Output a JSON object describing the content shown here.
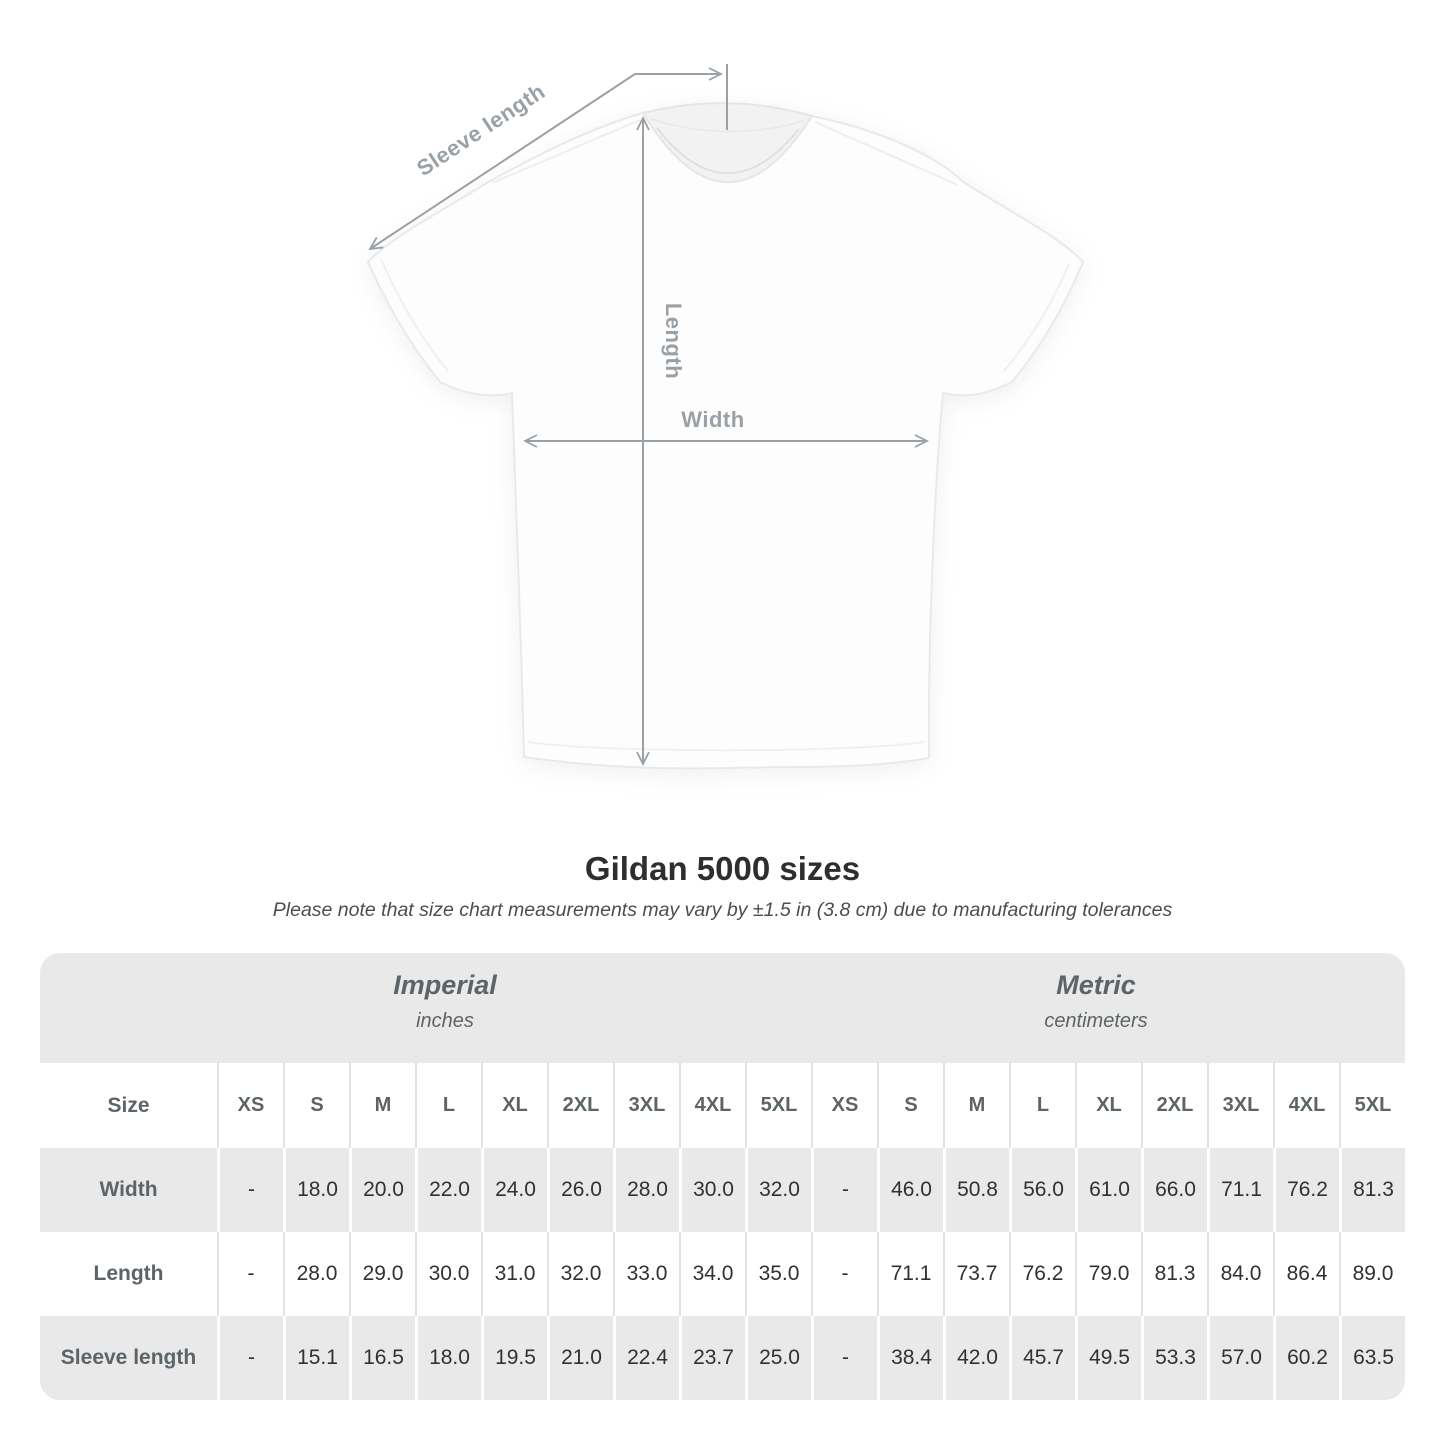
{
  "diagram": {
    "sleeve_length_label": "Sleeve length",
    "length_label": "Length",
    "width_label": "Width"
  },
  "heading": {
    "title": "Gildan 5000 sizes",
    "note": "Please note that size chart measurements may vary by ±1.5 in (3.8 cm) due to manufacturing tolerances"
  },
  "table": {
    "size_col_header": "Size",
    "unit_groups": [
      {
        "name": "Imperial",
        "unit": "inches"
      },
      {
        "name": "Metric",
        "unit": "centimeters"
      }
    ],
    "sizes": [
      "XS",
      "S",
      "M",
      "L",
      "XL",
      "2XL",
      "3XL",
      "4XL",
      "5XL"
    ],
    "rows": [
      {
        "label": "Width",
        "imperial": [
          "-",
          "18.0",
          "20.0",
          "22.0",
          "24.0",
          "26.0",
          "28.0",
          "30.0",
          "32.0"
        ],
        "metric": [
          "-",
          "46.0",
          "50.8",
          "56.0",
          "61.0",
          "66.0",
          "71.1",
          "76.2",
          "81.3"
        ]
      },
      {
        "label": "Length",
        "imperial": [
          "-",
          "28.0",
          "29.0",
          "30.0",
          "31.0",
          "32.0",
          "33.0",
          "34.0",
          "35.0"
        ],
        "metric": [
          "-",
          "71.1",
          "73.7",
          "76.2",
          "79.0",
          "81.3",
          "84.0",
          "86.4",
          "89.0"
        ]
      },
      {
        "label": "Sleeve length",
        "imperial": [
          "-",
          "15.1",
          "16.5",
          "18.0",
          "19.5",
          "21.0",
          "22.4",
          "23.7",
          "25.0"
        ],
        "metric": [
          "-",
          "38.4",
          "42.0",
          "45.7",
          "49.5",
          "53.3",
          "57.0",
          "60.2",
          "63.5"
        ]
      }
    ]
  },
  "colors": {
    "table_band": "#e9e9ea",
    "row_shade": "#e9e9ea",
    "divider_light": "#e2e2e2",
    "header_text": "#5d6468",
    "value_text": "#2f3133",
    "annotation_gray": "#9aa1a6"
  }
}
